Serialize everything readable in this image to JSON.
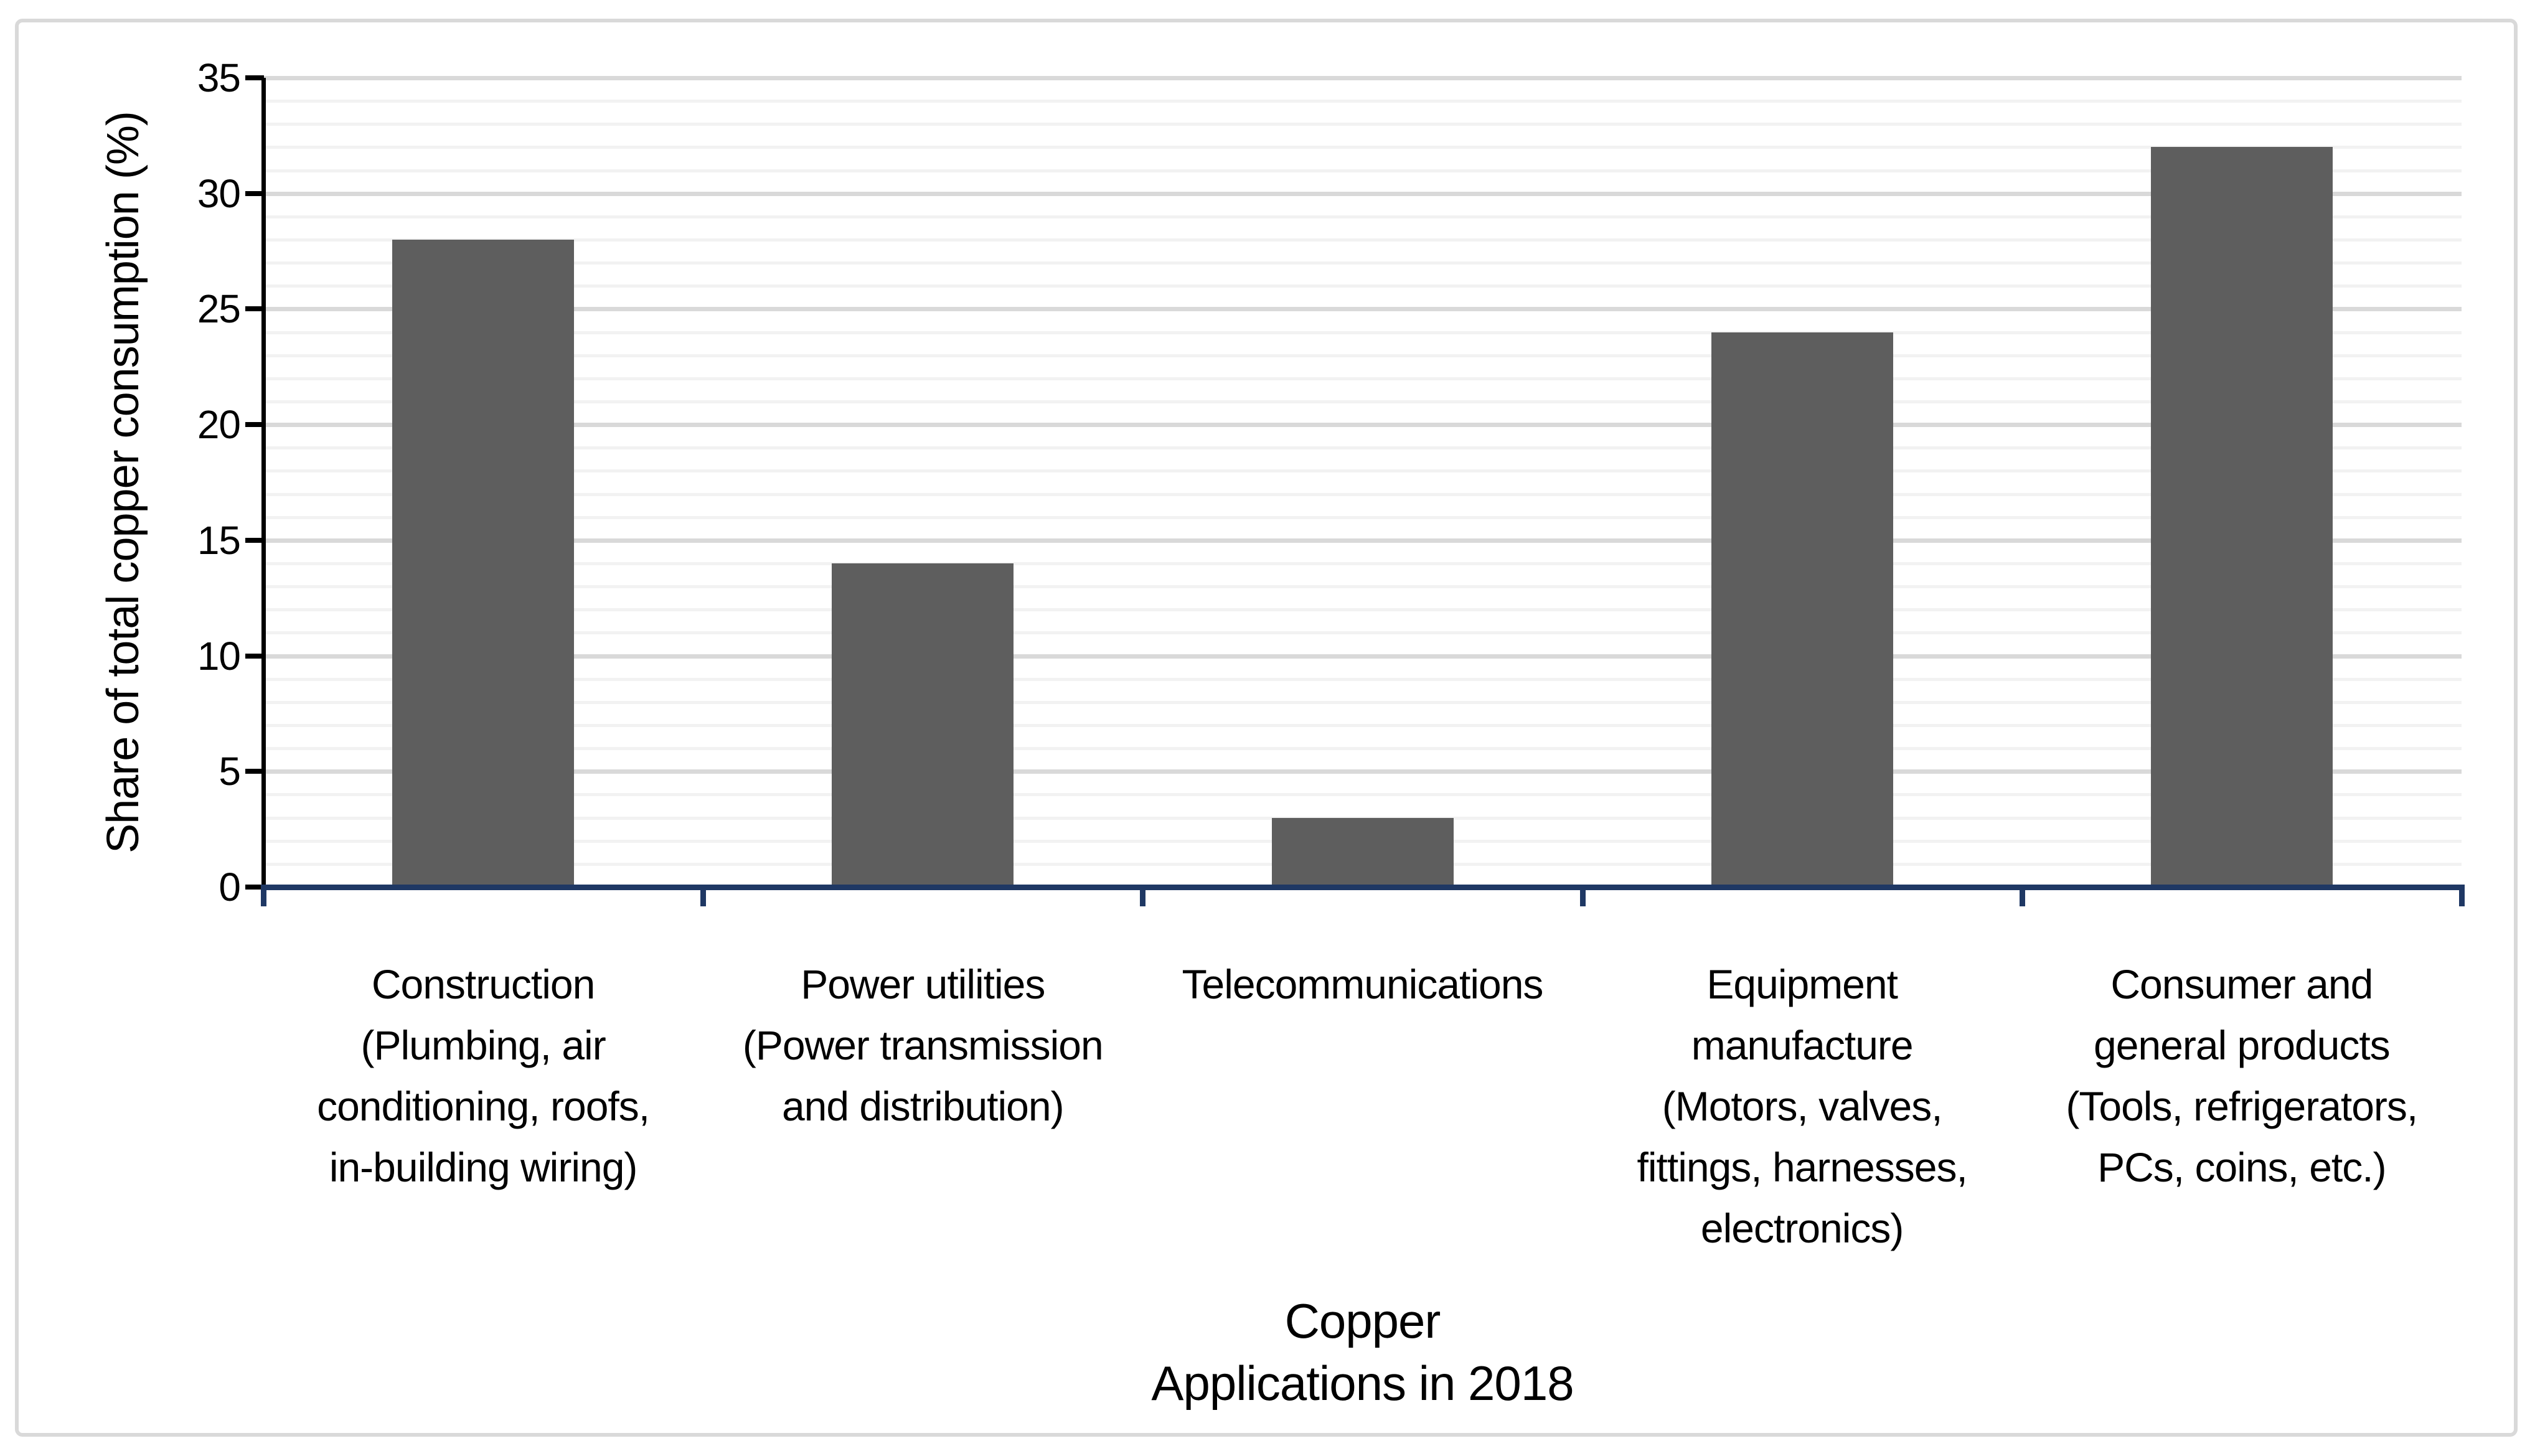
{
  "chart_data": {
    "type": "bar",
    "title_lines": [
      "Copper",
      "Applications in 2018"
    ],
    "xlabel": "Copper Applications in 2018",
    "ylabel": "Share of total copper consumption (%)",
    "ylim": [
      0,
      35
    ],
    "yticks": [
      0,
      5,
      10,
      15,
      20,
      25,
      30,
      35
    ],
    "ytick_interval_major": 5,
    "ytick_interval_minor": 1,
    "grid": "horizontal major + minor",
    "legend": "none",
    "categories": [
      {
        "slug": "construction",
        "label": "Construction (Plumbing, air conditioning, roofs, in-building wiring)",
        "lines": [
          "Construction",
          "(Plumbing, air",
          "conditioning, roofs,",
          "in-building wiring)"
        ],
        "value": 28
      },
      {
        "slug": "power-utilities",
        "label": "Power utilities (Power transmission and distribution)",
        "lines": [
          "Power utilities",
          "(Power transmission",
          "and distribution)"
        ],
        "value": 14
      },
      {
        "slug": "telecommunications",
        "label": "Telecommunications",
        "lines": [
          "Telecommunications"
        ],
        "value": 3
      },
      {
        "slug": "equipment-manufacture",
        "label": "Equipment manufacture (Motors, valves, fittings, harnesses, electronics)",
        "lines": [
          "Equipment",
          "manufacture",
          "(Motors, valves,",
          "fittings, harnesses,",
          "electronics)"
        ],
        "value": 24
      },
      {
        "slug": "consumer-products",
        "label": "Consumer and general products (Tools, refrigerators, PCs, coins, etc.)",
        "lines": [
          "Consumer and",
          "general products",
          "(Tools, refrigerators,",
          "PCs, coins, etc.)"
        ],
        "value": 32
      }
    ],
    "values": [
      28,
      14,
      3,
      24,
      32
    ]
  },
  "colors": {
    "bar": "#5E5E5E",
    "x_axis": "#1F3864",
    "y_axis": "#000000",
    "grid_major": "#D9D9D9",
    "grid_minor": "#F2F2F2",
    "border": "#D9D9D9",
    "text": "#000000",
    "background": "#FFFFFF"
  }
}
